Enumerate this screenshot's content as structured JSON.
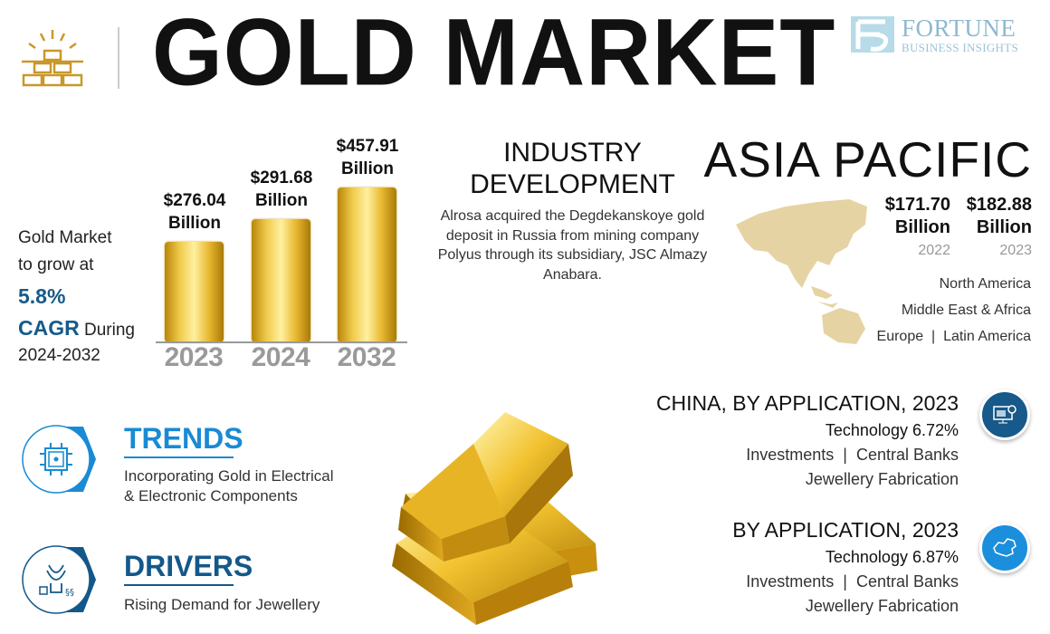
{
  "header": {
    "title": "GOLD MARKET",
    "logo_line1": "FORTUNE",
    "logo_line2": "BUSINESS INSIGHTS",
    "icon": "gold-bars-icon"
  },
  "growth": {
    "line1": "Gold Market",
    "line2": "to grow at",
    "rate": "5.8%",
    "cagr": "CAGR",
    "during": "During",
    "period": "2024-2032"
  },
  "chart_data": {
    "type": "bar",
    "categories": [
      "2023",
      "2024",
      "2032"
    ],
    "values": [
      276.04,
      291.68,
      457.91
    ],
    "value_labels": [
      "$276.04",
      "$291.68",
      "$457.91"
    ],
    "unit": "Billion",
    "color": "#e8b830"
  },
  "industry": {
    "heading_line1": "INDUSTRY",
    "heading_line2": "DEVELOPMENT",
    "text": "Alrosa acquired the Degdekanskoye gold deposit in Russia from mining company Polyus through its subsidiary, JSC Almazy Anabara."
  },
  "region": {
    "name": "ASIA PACIFIC",
    "values": [
      {
        "value": "$171.70",
        "unit": "Billion",
        "year": "2022"
      },
      {
        "value": "$182.88",
        "unit": "Billion",
        "year": "2023"
      }
    ],
    "others": [
      "North America",
      "Middle East & Africa",
      "Europe  |  Latin America"
    ],
    "map_color": "#e6d3a3"
  },
  "china": {
    "heading": "CHINA, BY APPLICATION, 2023",
    "top": "Technology 6.72%",
    "line2": "Investments  |  Central Banks",
    "line3": "Jewellery Fabrication",
    "icon": "computer-gear-icon",
    "color": "#16598a"
  },
  "application": {
    "heading": "BY APPLICATION, 2023",
    "top": "Technology 6.87%",
    "line2": "Investments  |  Central Banks",
    "line3": "Jewellery Fabrication",
    "icon": "china-map-icon",
    "color": "#1b8fdc"
  },
  "trends": {
    "heading": "TRENDS",
    "line1": "Incorporating Gold in Electrical",
    "line2": "& Electronic Components",
    "icon": "chip-icon",
    "color": "#1a8ad4"
  },
  "drivers": {
    "heading": "DRIVERS",
    "text": "Rising Demand for Jewellery",
    "icon": "jewellery-icon",
    "color": "#14588a"
  }
}
